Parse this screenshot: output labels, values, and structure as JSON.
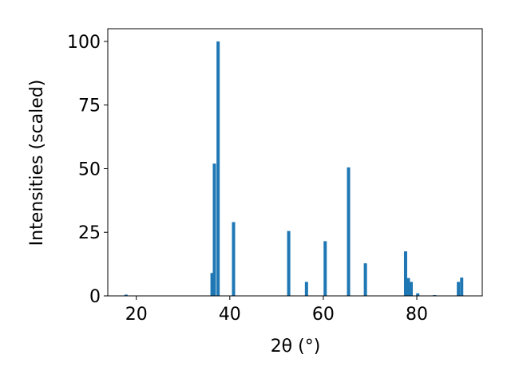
{
  "chart_data": {
    "type": "bar",
    "xlabel": "2θ (°)",
    "ylabel": "Intensities (scaled)",
    "x": [
      17.8,
      36.2,
      36.7,
      37.5,
      40.8,
      52.6,
      56.4,
      60.4,
      65.4,
      69.0,
      77.6,
      78.2,
      78.8,
      80.2,
      83.8,
      88.9,
      89.6
    ],
    "values": [
      0.5,
      9,
      52,
      100,
      29,
      25.5,
      5.5,
      21.5,
      50.5,
      12.8,
      17.5,
      7,
      5.5,
      1,
      0.3,
      5.5,
      7.2
    ],
    "color": "#1f77b4",
    "xlim": [
      13.9,
      94
    ],
    "xticks": [
      20,
      40,
      60,
      80
    ],
    "ylim": [
      0,
      105
    ],
    "yticks": [
      0,
      25,
      50,
      75,
      100
    ]
  }
}
